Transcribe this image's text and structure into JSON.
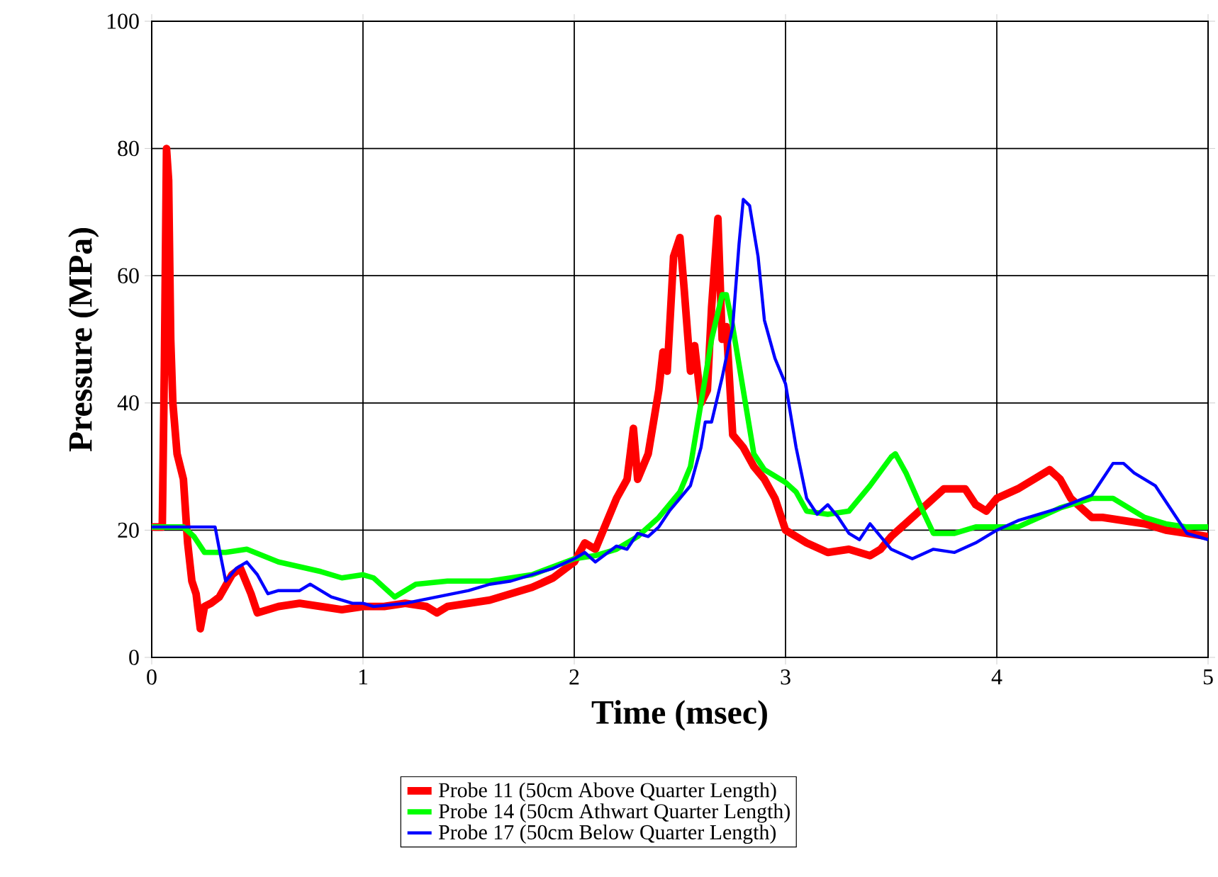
{
  "chart_data": {
    "type": "line",
    "xlabel": "Time (msec)",
    "ylabel": "Pressure (MPa)",
    "xlim": [
      0,
      5
    ],
    "ylim": [
      0,
      100
    ],
    "xticks": [
      0,
      1,
      2,
      3,
      4,
      5
    ],
    "yticks": [
      0,
      20,
      40,
      60,
      80,
      100
    ],
    "grid": true,
    "legend": "bottom",
    "marker": "none",
    "line_style": "solid",
    "series": [
      {
        "name": "Probe 11 (50cm Above Quarter Length)",
        "color": "#ff0000",
        "x": [
          0,
          0.05,
          0.06,
          0.07,
          0.08,
          0.09,
          0.1,
          0.12,
          0.15,
          0.17,
          0.19,
          0.21,
          0.23,
          0.25,
          0.28,
          0.32,
          0.38,
          0.42,
          0.47,
          0.5,
          0.6,
          0.7,
          0.8,
          0.9,
          1.0,
          1.1,
          1.2,
          1.3,
          1.35,
          1.4,
          1.5,
          1.6,
          1.7,
          1.8,
          1.9,
          2.0,
          2.05,
          2.1,
          2.15,
          2.2,
          2.25,
          2.28,
          2.3,
          2.35,
          2.38,
          2.4,
          2.42,
          2.44,
          2.47,
          2.5,
          2.52,
          2.55,
          2.57,
          2.6,
          2.63,
          2.65,
          2.68,
          2.7,
          2.72,
          2.75,
          2.8,
          2.85,
          2.9,
          2.95,
          3.0,
          3.05,
          3.1,
          3.2,
          3.3,
          3.4,
          3.45,
          3.5,
          3.6,
          3.7,
          3.75,
          3.85,
          3.9,
          3.95,
          4.0,
          4.1,
          4.2,
          4.25,
          4.3,
          4.35,
          4.45,
          4.5,
          4.6,
          4.7,
          4.8,
          4.9,
          5.0
        ],
        "values": [
          20.5,
          20.5,
          46,
          80,
          75,
          50,
          40,
          32,
          28,
          18,
          12,
          10,
          4.5,
          8,
          8.5,
          9.5,
          13,
          14,
          10,
          7,
          8,
          8.5,
          8,
          7.5,
          8,
          8,
          8.5,
          8,
          7,
          8,
          8.5,
          9,
          10,
          11,
          12.5,
          15,
          18,
          17,
          21,
          25,
          28,
          36,
          28,
          32,
          38,
          42,
          48,
          45,
          63,
          66,
          58,
          45,
          49,
          40,
          42,
          55,
          69,
          50,
          52,
          35,
          33,
          30,
          28,
          25,
          20,
          19,
          18,
          16.5,
          17,
          16,
          17,
          19,
          22,
          25,
          26.5,
          26.5,
          24,
          23,
          25,
          26.5,
          28.5,
          29.5,
          28,
          25,
          22,
          22,
          21.5,
          21,
          20,
          19.5,
          19
        ]
      },
      {
        "name": "Probe 14 (50cm Athwart Quarter Length)",
        "color": "#00ff00",
        "x": [
          0,
          0.15,
          0.2,
          0.25,
          0.35,
          0.45,
          0.6,
          0.8,
          0.9,
          1.0,
          1.05,
          1.15,
          1.25,
          1.4,
          1.6,
          1.8,
          2.0,
          2.1,
          2.2,
          2.3,
          2.4,
          2.5,
          2.55,
          2.6,
          2.65,
          2.7,
          2.72,
          2.75,
          2.8,
          2.85,
          2.9,
          3.0,
          3.05,
          3.1,
          3.2,
          3.3,
          3.35,
          3.4,
          3.5,
          3.52,
          3.57,
          3.65,
          3.7,
          3.8,
          3.9,
          4.0,
          4.1,
          4.2,
          4.3,
          4.45,
          4.55,
          4.6,
          4.7,
          4.8,
          4.9,
          5.0
        ],
        "values": [
          20.5,
          20.5,
          19,
          16.5,
          16.5,
          17,
          15,
          13.5,
          12.5,
          13,
          12.5,
          9.5,
          11.5,
          12,
          12,
          13,
          15.5,
          16,
          17,
          19,
          22,
          26,
          30,
          40,
          50,
          57,
          57,
          52,
          42,
          32,
          29.5,
          27.5,
          26,
          23,
          22.5,
          23,
          25,
          27,
          31.5,
          32,
          29,
          23,
          19.5,
          19.5,
          20.5,
          20.5,
          20.5,
          22,
          23.5,
          25,
          25,
          24,
          22,
          21,
          20.5,
          20.5
        ]
      },
      {
        "name": "Probe 17 (50cm Below Quarter Length)",
        "color": "#0000ff",
        "x": [
          0,
          0.3,
          0.32,
          0.35,
          0.4,
          0.45,
          0.5,
          0.55,
          0.6,
          0.7,
          0.75,
          0.85,
          0.95,
          1.0,
          1.05,
          1.2,
          1.35,
          1.5,
          1.6,
          1.7,
          1.8,
          1.9,
          2.0,
          2.05,
          2.1,
          2.2,
          2.25,
          2.3,
          2.35,
          2.4,
          2.45,
          2.5,
          2.55,
          2.6,
          2.62,
          2.65,
          2.7,
          2.75,
          2.78,
          2.8,
          2.83,
          2.87,
          2.9,
          2.95,
          3.0,
          3.05,
          3.1,
          3.15,
          3.2,
          3.25,
          3.3,
          3.35,
          3.4,
          3.5,
          3.6,
          3.7,
          3.8,
          3.9,
          4.0,
          4.1,
          4.3,
          4.45,
          4.5,
          4.55,
          4.6,
          4.65,
          4.75,
          4.85,
          4.9,
          5.0
        ],
        "values": [
          20.5,
          20.5,
          17,
          12,
          14,
          15,
          13,
          10,
          10.5,
          10.5,
          11.5,
          9.5,
          8.5,
          8.5,
          8,
          8.5,
          9.5,
          10.5,
          11.5,
          12,
          13,
          14,
          15.5,
          16.5,
          15,
          17.5,
          17,
          19.5,
          19,
          20.5,
          23,
          25,
          27,
          33,
          37,
          37,
          44,
          52,
          65,
          72,
          71,
          63,
          53,
          47,
          43,
          33,
          25,
          22.5,
          24,
          22,
          19.5,
          18.5,
          21,
          17,
          15.5,
          17,
          16.5,
          18,
          20,
          21.5,
          23.5,
          25.5,
          28,
          30.5,
          30.5,
          29,
          27,
          22,
          19.5,
          18.5
        ]
      }
    ]
  }
}
